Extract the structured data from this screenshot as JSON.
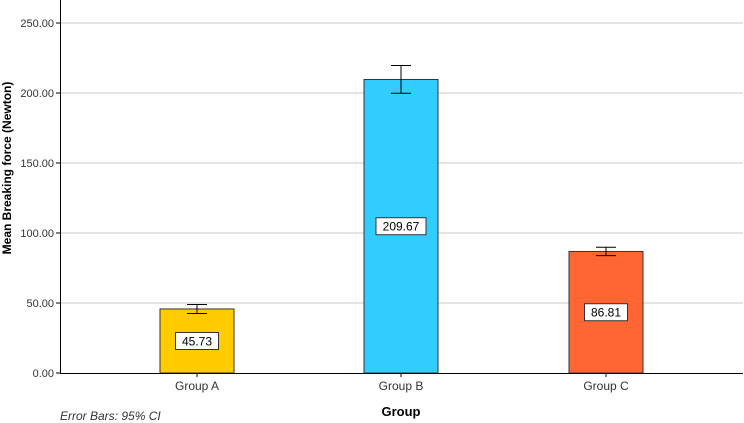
{
  "chart_data": {
    "type": "bar",
    "categories": [
      "Group A",
      "Group B",
      "Group C"
    ],
    "series": [
      {
        "values": [
          45.73,
          209.67,
          86.81
        ],
        "data_labels": [
          "45.73",
          "209.67",
          "86.81"
        ],
        "ci_lower": [
          42.5,
          199.8,
          83.8
        ],
        "ci_upper": [
          48.9,
          219.6,
          89.8
        ],
        "colors": [
          "#FFCC00",
          "#33CCFF",
          "#FF6633"
        ]
      }
    ],
    "xlabel": "Group",
    "ylabel": "Mean Breaking force (Newton)",
    "ylim": [
      0,
      260
    ],
    "yticks": [
      0,
      50,
      100,
      150,
      200,
      250
    ],
    "ytick_labels": [
      "0.00",
      "50.00",
      "100.00",
      "150.00",
      "200.00",
      "250.00"
    ],
    "grid": true,
    "footnote": "Error Bars: 95% CI"
  }
}
